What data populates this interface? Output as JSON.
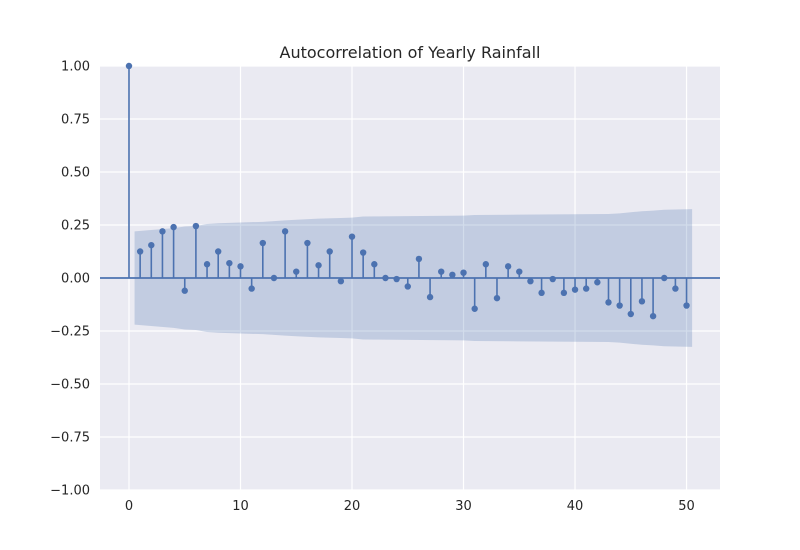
{
  "chart_data": {
    "type": "stem",
    "title": "Autocorrelation of Yearly Rainfall",
    "xlabel": "",
    "ylabel": "",
    "xlim": [
      -2.6,
      53
    ],
    "ylim": [
      -1.0,
      1.0
    ],
    "x_ticks": [
      0,
      10,
      20,
      30,
      40,
      50
    ],
    "x_tick_labels": [
      "0",
      "10",
      "20",
      "30",
      "40",
      "50"
    ],
    "y_ticks": [
      -1.0,
      -0.75,
      -0.5,
      -0.25,
      0.0,
      0.25,
      0.5,
      0.75,
      1.0
    ],
    "y_tick_labels": [
      "−1.00",
      "−0.75",
      "−0.50",
      "−0.25",
      "0.00",
      "0.25",
      "0.50",
      "0.75",
      "1.00"
    ],
    "grid": true,
    "lags": [
      0,
      1,
      2,
      3,
      4,
      5,
      6,
      7,
      8,
      9,
      10,
      11,
      12,
      13,
      14,
      15,
      16,
      17,
      18,
      19,
      20,
      21,
      22,
      23,
      24,
      25,
      26,
      27,
      28,
      29,
      30,
      31,
      32,
      33,
      34,
      35,
      36,
      37,
      38,
      39,
      40,
      41,
      42,
      43,
      44,
      45,
      46,
      47,
      48,
      49,
      50
    ],
    "acf": [
      1.0,
      0.125,
      0.155,
      0.22,
      0.24,
      -0.06,
      0.245,
      0.065,
      0.125,
      0.07,
      0.055,
      -0.05,
      0.165,
      0.0,
      0.22,
      0.03,
      0.165,
      0.06,
      0.125,
      -0.015,
      0.195,
      0.12,
      0.065,
      0.0,
      -0.005,
      -0.04,
      0.09,
      -0.09,
      0.03,
      0.015,
      0.025,
      -0.145,
      0.065,
      -0.095,
      0.055,
      0.03,
      -0.015,
      -0.07,
      -0.005,
      -0.07,
      -0.055,
      -0.05,
      -0.02,
      -0.115,
      -0.13,
      -0.17,
      -0.11,
      -0.18,
      0.0,
      -0.05,
      -0.13
    ],
    "confidence_band": {
      "lags": [
        0.5,
        4,
        5,
        6,
        7,
        8,
        10,
        12,
        14,
        15,
        17,
        19,
        20,
        21,
        25,
        30,
        31,
        35,
        40,
        43,
        44,
        45,
        46,
        47,
        48,
        50.5
      ],
      "upper": [
        0.22,
        0.235,
        0.243,
        0.245,
        0.255,
        0.258,
        0.262,
        0.265,
        0.272,
        0.275,
        0.28,
        0.283,
        0.285,
        0.29,
        0.292,
        0.294,
        0.297,
        0.299,
        0.301,
        0.302,
        0.305,
        0.31,
        0.315,
        0.318,
        0.322,
        0.325
      ]
    },
    "colors": {
      "stem": "#4c72b0",
      "band": "#4c72b0",
      "axes_bg": "#eaeaf2",
      "grid": "#ffffff"
    }
  }
}
